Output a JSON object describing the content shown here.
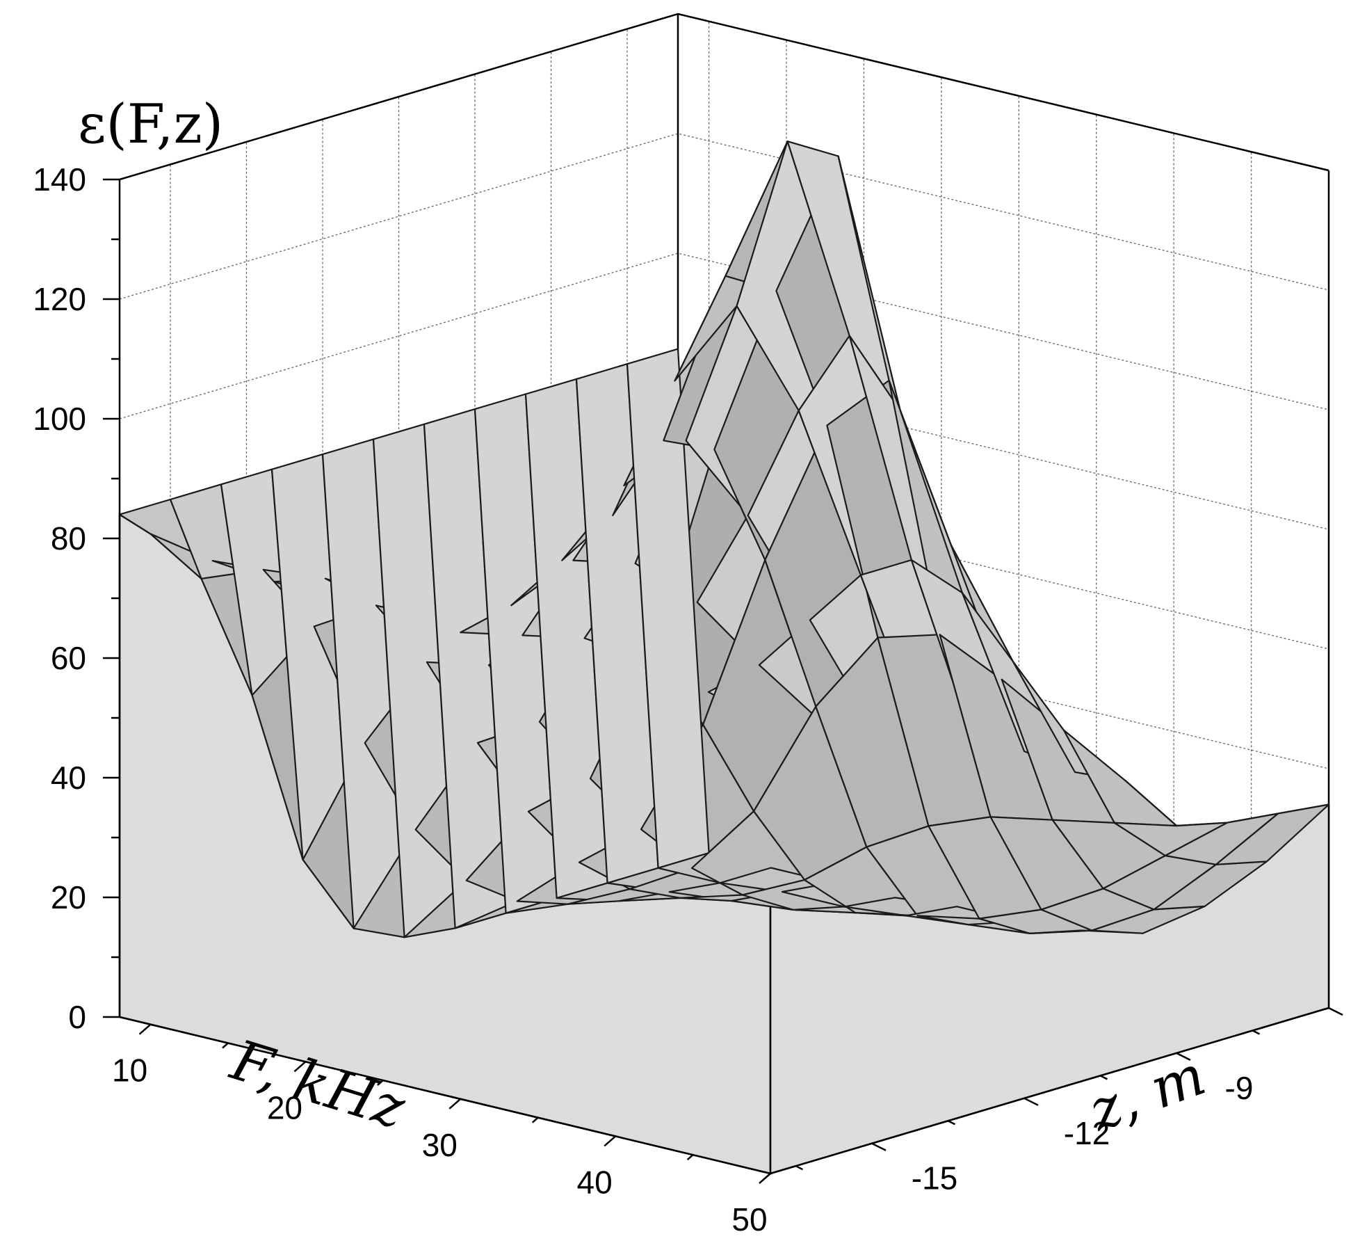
{
  "chart_data": {
    "type": "surface3d",
    "zlabel": "ε(F,z)",
    "xlabel": "F, kHz",
    "ylabel": "z, m",
    "F_range": [
      8,
      50
    ],
    "z_range": [
      -17,
      -6
    ],
    "eps_range": [
      0,
      140
    ],
    "F_ticks": [
      "10",
      "20",
      "30",
      "40",
      "50"
    ],
    "z_ticks": [
      "-15",
      "-12",
      "-9",
      "-6"
    ],
    "eps_ticks": [
      "0",
      "20",
      "40",
      "60",
      "80",
      "100",
      "120",
      "140"
    ],
    "F": [
      8,
      10,
      14,
      18,
      22,
      26,
      30,
      34,
      38,
      42,
      46,
      50
    ],
    "z": [
      -17,
      -16,
      -15,
      -14,
      -13,
      -12,
      -11,
      -10,
      -9,
      -8,
      -7,
      -6
    ],
    "eps": [
      [
        84,
        82,
        80,
        79,
        78,
        77,
        78,
        80,
        82,
        81,
        78,
        75
      ],
      [
        84,
        72,
        76,
        77,
        76,
        75,
        80,
        90,
        92,
        88,
        80,
        73
      ],
      [
        84,
        50,
        64,
        70,
        70,
        70,
        85,
        100,
        110,
        100,
        85,
        70
      ],
      [
        84,
        20,
        42,
        58,
        60,
        70,
        90,
        115,
        130,
        115,
        90,
        65
      ],
      [
        84,
        6,
        25,
        42,
        48,
        68,
        100,
        130,
        155,
        125,
        90,
        62
      ],
      [
        84,
        2,
        14,
        28,
        36,
        60,
        96,
        125,
        150,
        110,
        82,
        58
      ],
      [
        84,
        1,
        8,
        17,
        25,
        45,
        75,
        100,
        110,
        85,
        68,
        52
      ],
      [
        84,
        1,
        5,
        10,
        16,
        28,
        48,
        62,
        65,
        60,
        54,
        48
      ],
      [
        84,
        1,
        3,
        6,
        9,
        14,
        22,
        28,
        32,
        34,
        36,
        38
      ],
      [
        84,
        1,
        2,
        3,
        4,
        6,
        8,
        10,
        14,
        20,
        28,
        36
      ],
      [
        84,
        1,
        1,
        2,
        2,
        3,
        4,
        5,
        8,
        14,
        24,
        35
      ],
      [
        84,
        1,
        1,
        1,
        1,
        2,
        2,
        3,
        5,
        12,
        22,
        34
      ]
    ]
  }
}
